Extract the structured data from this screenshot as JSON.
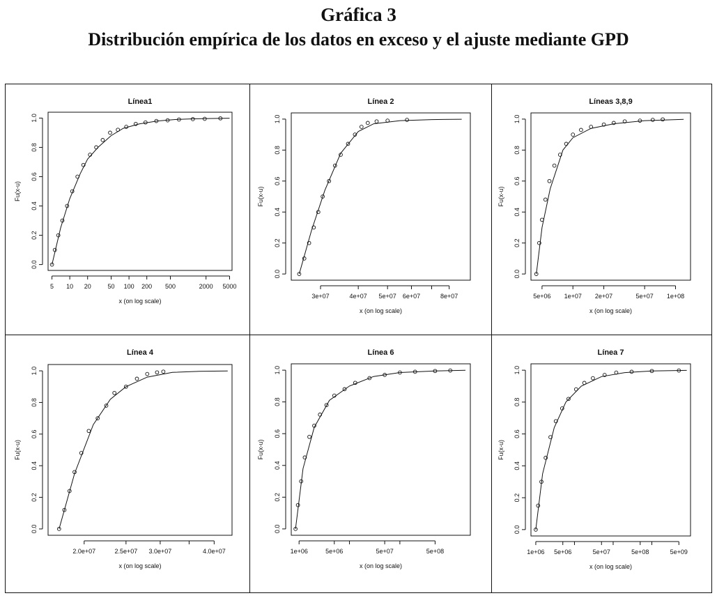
{
  "figure": {
    "label": "Gráfica 3",
    "title": "Distribución empírica de los datos en exceso y el ajuste mediante GPD"
  },
  "chart_data": [
    {
      "type": "scatter",
      "title": "Línea1",
      "xlabel": "x (on log scale)",
      "ylabel": "Fu(x-u)",
      "log_x": true,
      "xlim": [
        4.3,
        5500
      ],
      "ylim": [
        0,
        1
      ],
      "x_ticks": [
        5,
        10,
        20,
        50,
        100,
        200,
        500,
        2000,
        5000
      ],
      "x_tick_labels": [
        "5",
        "10",
        "20",
        "50",
        "100",
        "200",
        "500",
        "2000",
        "5000"
      ],
      "y_ticks": [
        0,
        0.2,
        0.4,
        0.6,
        0.8,
        1
      ],
      "y_tick_labels": [
        "0.0",
        "0.2",
        "0.4",
        "0.6",
        "0.8",
        "1.0"
      ],
      "series": [
        {
          "kind": "empirical",
          "x": [
            5,
            5.6,
            6.4,
            7.5,
            9,
            11,
            13.5,
            17,
            22,
            28,
            36,
            48,
            65,
            90,
            130,
            190,
            290,
            450,
            700,
            1200,
            1900,
            3500
          ],
          "y": [
            0,
            0.1,
            0.2,
            0.3,
            0.4,
            0.5,
            0.6,
            0.68,
            0.75,
            0.8,
            0.85,
            0.9,
            0.92,
            0.94,
            0.96,
            0.97,
            0.98,
            0.985,
            0.99,
            0.993,
            0.995,
            0.998
          ]
        },
        {
          "kind": "fit",
          "x": [
            5,
            7,
            10,
            15,
            20,
            30,
            50,
            80,
            150,
            300,
            600,
            1200,
            2500,
            5000
          ],
          "y": [
            0,
            0.25,
            0.45,
            0.62,
            0.72,
            0.8,
            0.88,
            0.93,
            0.96,
            0.98,
            0.99,
            0.995,
            0.997,
            0.999
          ]
        }
      ]
    },
    {
      "type": "scatter",
      "title": "Línea 2",
      "xlabel": "x (on log scale)",
      "ylabel": "Fu(x-u)",
      "log_x": true,
      "xlim": [
        24000000,
        94000000
      ],
      "ylim": [
        0,
        1
      ],
      "x_ticks": [
        30000000,
        40000000,
        50000000,
        60000000,
        80000000
      ],
      "x_tick_labels": [
        "3e+07",
        "4e+07",
        "5e+07",
        "6e+07",
        "8e+07"
      ],
      "x_minor_ticks": [
        70000000
      ],
      "y_ticks": [
        0,
        0.2,
        0.4,
        0.6,
        0.8,
        1
      ],
      "y_tick_labels": [
        "0.0",
        "0.2",
        "0.4",
        "0.6",
        "0.8",
        "1.0"
      ],
      "series": [
        {
          "kind": "empirical",
          "x": [
            25500000,
            26500000,
            27500000,
            28500000,
            29500000,
            30500000,
            32000000,
            33500000,
            35000000,
            37000000,
            39000000,
            41000000,
            43000000,
            46000000,
            50000000,
            58000000
          ],
          "y": [
            0,
            0.1,
            0.2,
            0.3,
            0.4,
            0.5,
            0.6,
            0.7,
            0.77,
            0.84,
            0.9,
            0.95,
            0.975,
            0.985,
            0.99,
            0.995
          ]
        },
        {
          "kind": "fit",
          "x": [
            25500000,
            28000000,
            31000000,
            35000000,
            40000000,
            45000000,
            55000000,
            70000000,
            88000000
          ],
          "y": [
            0,
            0.28,
            0.54,
            0.78,
            0.92,
            0.97,
            0.99,
            0.997,
            0.999
          ]
        }
      ]
    },
    {
      "type": "scatter",
      "title": "Líneas 3,8,9",
      "xlabel": "x (on log scale)",
      "ylabel": "Fu(x-u)",
      "log_x": true,
      "xlim": [
        3900000,
        140000000
      ],
      "ylim": [
        0,
        1
      ],
      "x_ticks": [
        5000000,
        10000000,
        20000000,
        50000000,
        100000000
      ],
      "x_tick_labels": [
        "5e+06",
        "1e+07",
        "2e+07",
        "5e+07",
        "1e+08"
      ],
      "y_ticks": [
        0,
        0.2,
        0.4,
        0.6,
        0.8,
        1
      ],
      "y_tick_labels": [
        "0.0",
        "0.2",
        "0.4",
        "0.6",
        "0.8",
        "1.0"
      ],
      "series": [
        {
          "kind": "empirical",
          "x": [
            4400000,
            4700000,
            5000000,
            5400000,
            5900000,
            6600000,
            7500000,
            8600000,
            10000000,
            12000000,
            15000000,
            20000000,
            25000000,
            32000000,
            45000000,
            60000000,
            75000000
          ],
          "y": [
            0,
            0.2,
            0.35,
            0.48,
            0.6,
            0.7,
            0.77,
            0.84,
            0.9,
            0.93,
            0.95,
            0.965,
            0.975,
            0.985,
            0.99,
            0.995,
            0.998
          ]
        },
        {
          "kind": "fit",
          "x": [
            4400000,
            5000000,
            6000000,
            8000000,
            10000000,
            15000000,
            25000000,
            50000000,
            120000000
          ],
          "y": [
            0,
            0.3,
            0.55,
            0.8,
            0.88,
            0.94,
            0.97,
            0.99,
            0.998
          ]
        }
      ]
    },
    {
      "type": "scatter",
      "title": "Línea 4",
      "xlabel": "x (on log scale)",
      "ylabel": "Fu(x-u)",
      "log_x": true,
      "xlim": [
        16500000,
        44000000
      ],
      "ylim": [
        0,
        1
      ],
      "x_ticks": [
        20000000,
        25000000,
        30000000,
        40000000
      ],
      "x_tick_labels": [
        "2.0e+07",
        "2.5e+07",
        "3.0e+07",
        "4.0e+07"
      ],
      "x_minor_ticks": [
        35000000
      ],
      "y_ticks": [
        0,
        0.2,
        0.4,
        0.6,
        0.8,
        1
      ],
      "y_tick_labels": [
        "0.0",
        "0.2",
        "0.4",
        "0.6",
        "0.8",
        "1.0"
      ],
      "series": [
        {
          "kind": "empirical",
          "x": [
            17500000,
            18000000,
            18500000,
            19000000,
            19700000,
            20500000,
            21500000,
            22500000,
            23500000,
            25000000,
            26500000,
            28000000,
            29500000,
            30500000
          ],
          "y": [
            0,
            0.12,
            0.24,
            0.36,
            0.48,
            0.62,
            0.7,
            0.78,
            0.86,
            0.9,
            0.95,
            0.98,
            0.99,
            0.995
          ]
        },
        {
          "kind": "fit",
          "x": [
            17500000,
            19000000,
            21000000,
            23000000,
            25000000,
            28000000,
            32000000,
            37000000,
            43000000
          ],
          "y": [
            0,
            0.35,
            0.66,
            0.82,
            0.9,
            0.96,
            0.99,
            0.997,
            0.999
          ]
        }
      ]
    },
    {
      "type": "scatter",
      "title": "Línea 6",
      "xlabel": "x (on log scale)",
      "ylabel": "Fu(x-u)",
      "log_x": true,
      "xlim": [
        700000,
        2500000000
      ],
      "ylim": [
        0,
        1
      ],
      "x_ticks": [
        1000000,
        5000000,
        50000000,
        500000000
      ],
      "x_tick_labels": [
        "1e+06",
        "5e+06",
        "5e+07",
        "5e+08"
      ],
      "x_minor_ticks": [
        10000000,
        100000000
      ],
      "y_ticks": [
        0,
        0.2,
        0.4,
        0.6,
        0.8,
        1
      ],
      "y_tick_labels": [
        "0.0",
        "0.2",
        "0.4",
        "0.6",
        "0.8",
        "1.0"
      ],
      "series": [
        {
          "kind": "empirical",
          "x": [
            850000,
            950000,
            1100000,
            1300000,
            1600000,
            2000000,
            2600000,
            3500000,
            5000000,
            8000000,
            13000000,
            25000000,
            50000000,
            100000000,
            200000000,
            500000000,
            1000000000
          ],
          "y": [
            0,
            0.15,
            0.3,
            0.45,
            0.58,
            0.65,
            0.72,
            0.78,
            0.84,
            0.88,
            0.92,
            0.95,
            0.97,
            0.985,
            0.99,
            0.995,
            0.998
          ]
        },
        {
          "kind": "fit",
          "x": [
            850000,
            1200000,
            2000000,
            4000000,
            10000000,
            30000000,
            100000000,
            500000000,
            2000000000
          ],
          "y": [
            0,
            0.38,
            0.64,
            0.81,
            0.9,
            0.96,
            0.985,
            0.995,
            0.999
          ]
        }
      ]
    },
    {
      "type": "scatter",
      "title": "Línea 7",
      "xlabel": "x (on log scale)",
      "ylabel": "Fu(x-u)",
      "log_x": true,
      "xlim": [
        750000,
        10000000000
      ],
      "ylim": [
        0,
        1
      ],
      "x_ticks": [
        1000000,
        5000000,
        50000000,
        500000000,
        5000000000
      ],
      "x_tick_labels": [
        "1e+06",
        "5e+06",
        "5e+07",
        "5e+08",
        "5e+09"
      ],
      "x_minor_ticks": [
        10000000,
        100000000,
        1000000000
      ],
      "y_ticks": [
        0,
        0.2,
        0.4,
        0.6,
        0.8,
        1
      ],
      "y_tick_labels": [
        "0.0",
        "0.2",
        "0.4",
        "0.6",
        "0.8",
        "1.0"
      ],
      "series": [
        {
          "kind": "empirical",
          "x": [
            1000000,
            1150000,
            1400000,
            1800000,
            2400000,
            3300000,
            4800000,
            7000000,
            11000000,
            18000000,
            30000000,
            60000000,
            120000000,
            300000000,
            1000000000,
            5000000000
          ],
          "y": [
            0,
            0.15,
            0.3,
            0.45,
            0.58,
            0.68,
            0.76,
            0.82,
            0.88,
            0.92,
            0.95,
            0.97,
            0.985,
            0.99,
            0.995,
            0.998
          ]
        },
        {
          "kind": "fit",
          "x": [
            1000000,
            1500000,
            3000000,
            6000000,
            15000000,
            50000000,
            200000000,
            1000000000,
            8000000000
          ],
          "y": [
            0,
            0.35,
            0.64,
            0.8,
            0.9,
            0.96,
            0.985,
            0.995,
            0.999
          ]
        }
      ]
    }
  ]
}
